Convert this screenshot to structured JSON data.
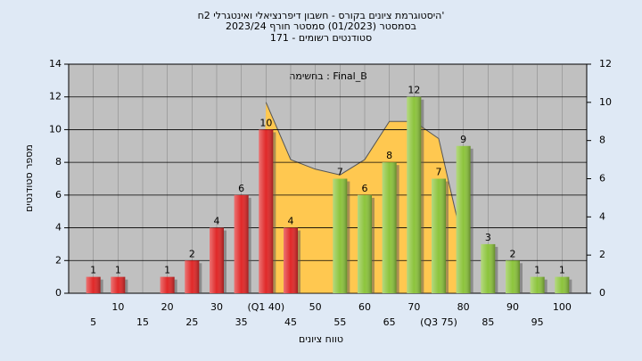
{
  "chart_data": {
    "type": "bar",
    "title": "היסטוגרמת ציונים בקורס - חשבון דיפרנציאלי ואינטגרלי 2ח'",
    "subtitle": "בסמסטר  (01/2023)  סמסטר חורף  2023/24",
    "subtitle2": "סטודנטים רשומים - 171",
    "annotation": "בחשימה : Final_B",
    "ylabel": "מספר סטודנטים",
    "xlabel": "טווח ציונים",
    "categories": [
      "5",
      "10",
      "15",
      "20",
      "25",
      "30",
      "35",
      "(Q1 40)",
      "45",
      "50",
      "55",
      "60",
      "65",
      "70",
      "(Q3 75)",
      "80",
      "85",
      "90",
      "95",
      "100"
    ],
    "values": [
      1,
      1,
      0,
      1,
      2,
      4,
      6,
      10,
      4,
      0,
      7,
      6,
      8,
      12,
      7,
      9,
      3,
      2,
      1,
      1
    ],
    "colors": [
      "#e02828",
      "#e02828",
      "#e02828",
      "#e02828",
      "#e02828",
      "#e02828",
      "#e02828",
      "#e02828",
      "#e02828",
      "#e02828",
      "#8cc43c",
      "#8cc43c",
      "#8cc43c",
      "#8cc43c",
      "#8cc43c",
      "#8cc43c",
      "#8cc43c",
      "#8cc43c",
      "#8cc43c",
      "#8cc43c"
    ],
    "series": [
      {
        "color": "#ffc850",
        "axis": "y2",
        "values": [
          null,
          null,
          null,
          null,
          null,
          null,
          null,
          10,
          7,
          6.5,
          6.2,
          7,
          9,
          9,
          8.1,
          2.5,
          null,
          null,
          null,
          null
        ]
      }
    ],
    "ylim": [
      0,
      14
    ],
    "yticks": [
      0,
      2,
      4,
      6,
      8,
      10,
      12,
      14
    ],
    "y2lim": [
      0,
      12
    ],
    "y2ticks": [
      0,
      2,
      4,
      6,
      8,
      10,
      12
    ],
    "grid": true
  }
}
